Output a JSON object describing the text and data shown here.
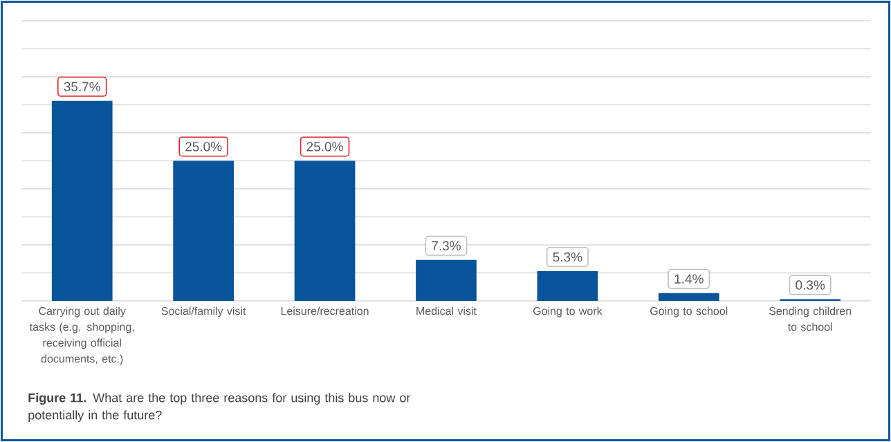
{
  "chart_data": {
    "type": "bar",
    "categories": [
      "Carrying out daily tasks (e.g. shopping, receiving official documents, etc.)",
      "Social/family visit",
      "Leisure/recreation",
      "Medical visit",
      "Going to work",
      "Going to school",
      "Sending children to school"
    ],
    "values": [
      35.7,
      25.0,
      25.0,
      7.3,
      5.3,
      1.4,
      0.3
    ],
    "value_labels": [
      "35.7%",
      "25.0%",
      "25.0%",
      "7.3%",
      "5.3%",
      "1.4%",
      "0.3%"
    ],
    "color": "#08549a",
    "ylim": [
      0,
      50
    ],
    "yticks": [
      0,
      5,
      10,
      15,
      20,
      25,
      30,
      35,
      40,
      45,
      50
    ],
    "tick_labels": "x",
    "grid": "y",
    "annotations": [
      "**Figure 11.** What are the top three reasons for using this bus now or potentially in the future?"
    ]
  }
}
